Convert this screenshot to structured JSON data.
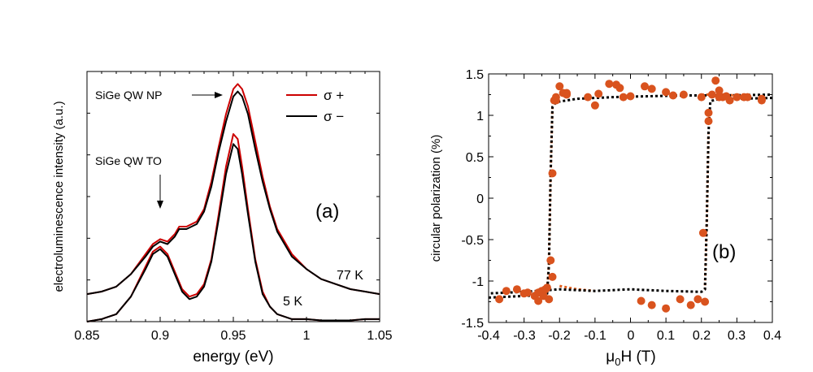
{
  "chart_data": [
    {
      "type": "line",
      "panel": "(a)",
      "xlabel": "energy (eV)",
      "ylabel": "electroluminescence intensity (a.u.)",
      "xlim": [
        0.85,
        1.05
      ],
      "ylim": [
        0,
        1
      ],
      "xticks": [
        "0.85",
        "0.9",
        "0.95",
        "1",
        "1.05"
      ],
      "legend": {
        "position": "top-right",
        "entries": [
          {
            "label": "σ +",
            "color": "#cc0000"
          },
          {
            "label": "σ −",
            "color": "#000000"
          }
        ]
      },
      "annotations": [
        {
          "text": "SiGe QW NP",
          "points_to_x": 0.95
        },
        {
          "text": "SiGe QW TO",
          "points_to_x": 0.9
        }
      ],
      "temperature_labels": {
        "high": "77 K",
        "low": "5 K"
      },
      "series": [
        {
          "name": "77 K σ +",
          "color": "#cc0000",
          "x": [
            0.85,
            0.86,
            0.87,
            0.88,
            0.89,
            0.895,
            0.9,
            0.905,
            0.91,
            0.913,
            0.918,
            0.925,
            0.93,
            0.935,
            0.94,
            0.945,
            0.95,
            0.953,
            0.956,
            0.96,
            0.965,
            0.97,
            0.975,
            0.98,
            0.99,
            1.0,
            1.01,
            1.02,
            1.03,
            1.04,
            1.05
          ],
          "y": [
            0.11,
            0.12,
            0.14,
            0.19,
            0.27,
            0.31,
            0.33,
            0.32,
            0.35,
            0.38,
            0.38,
            0.4,
            0.45,
            0.56,
            0.7,
            0.83,
            0.93,
            0.95,
            0.93,
            0.86,
            0.72,
            0.58,
            0.46,
            0.37,
            0.27,
            0.21,
            0.17,
            0.15,
            0.13,
            0.12,
            0.11
          ]
        },
        {
          "name": "77 K σ −",
          "color": "#000000",
          "x": [
            0.85,
            0.86,
            0.87,
            0.88,
            0.89,
            0.895,
            0.9,
            0.905,
            0.91,
            0.913,
            0.918,
            0.925,
            0.93,
            0.935,
            0.94,
            0.945,
            0.95,
            0.953,
            0.956,
            0.96,
            0.965,
            0.97,
            0.975,
            0.98,
            0.99,
            1.0,
            1.01,
            1.02,
            1.03,
            1.04,
            1.05
          ],
          "y": [
            0.11,
            0.12,
            0.14,
            0.19,
            0.26,
            0.3,
            0.32,
            0.31,
            0.34,
            0.37,
            0.37,
            0.39,
            0.44,
            0.54,
            0.68,
            0.8,
            0.9,
            0.92,
            0.9,
            0.83,
            0.69,
            0.56,
            0.45,
            0.36,
            0.26,
            0.21,
            0.17,
            0.15,
            0.13,
            0.12,
            0.11
          ]
        },
        {
          "name": "5 K σ +",
          "color": "#cc0000",
          "x": [
            0.85,
            0.86,
            0.87,
            0.88,
            0.89,
            0.895,
            0.9,
            0.905,
            0.91,
            0.915,
            0.92,
            0.925,
            0.93,
            0.935,
            0.94,
            0.945,
            0.95,
            0.953,
            0.956,
            0.96,
            0.965,
            0.97,
            0.975,
            0.98,
            0.99,
            1.0,
            1.01,
            1.02,
            1.03,
            1.04,
            1.05
          ],
          "y": [
            0.0,
            0.01,
            0.03,
            0.1,
            0.22,
            0.28,
            0.3,
            0.27,
            0.2,
            0.13,
            0.1,
            0.11,
            0.15,
            0.25,
            0.43,
            0.62,
            0.75,
            0.73,
            0.62,
            0.45,
            0.25,
            0.12,
            0.06,
            0.03,
            0.01,
            0.01,
            0.005,
            0.005,
            0.005,
            0.01,
            0.01
          ]
        },
        {
          "name": "5 K σ −",
          "color": "#000000",
          "x": [
            0.85,
            0.86,
            0.87,
            0.88,
            0.89,
            0.895,
            0.9,
            0.905,
            0.91,
            0.915,
            0.92,
            0.925,
            0.93,
            0.935,
            0.94,
            0.945,
            0.95,
            0.953,
            0.956,
            0.96,
            0.965,
            0.97,
            0.975,
            0.98,
            0.99,
            1.0,
            1.01,
            1.02,
            1.03,
            1.04,
            1.05
          ],
          "y": [
            0.0,
            0.01,
            0.03,
            0.1,
            0.21,
            0.27,
            0.29,
            0.26,
            0.19,
            0.12,
            0.09,
            0.1,
            0.14,
            0.24,
            0.41,
            0.59,
            0.71,
            0.69,
            0.59,
            0.43,
            0.24,
            0.11,
            0.06,
            0.03,
            0.01,
            0.01,
            0.005,
            0.005,
            0.005,
            0.01,
            0.01
          ]
        }
      ]
    },
    {
      "type": "scatter",
      "panel": "(b)",
      "xlabel_main": "μ",
      "xlabel_sub": "0",
      "xlabel_rest": "H (T)",
      "ylabel": "circular polarization (%)",
      "xlim": [
        -0.4,
        0.4
      ],
      "ylim": [
        -1.5,
        1.5
      ],
      "xticks": [
        "-0.4",
        "-0.3",
        "-0.2",
        "-0.1",
        "0",
        "0.1",
        "0.2",
        "0.3",
        "0.4"
      ],
      "yticks": [
        "1.5",
        "1",
        "0.5",
        "0",
        "-0.5",
        "-1",
        "-1.5"
      ],
      "points": {
        "color": "#d9531e",
        "x": [
          -0.37,
          -0.32,
          -0.29,
          -0.27,
          -0.26,
          -0.25,
          -0.245,
          -0.235,
          -0.23,
          -0.225,
          -0.22,
          -0.215,
          -0.21,
          -0.2,
          -0.19,
          -0.18,
          -0.12,
          -0.09,
          -0.06,
          -0.03,
          0.0,
          0.04,
          0.06,
          0.1,
          0.12,
          0.15,
          0.2,
          0.22,
          0.24,
          0.25,
          0.26,
          0.28,
          0.3,
          0.32,
          0.37,
          -0.35,
          -0.3,
          -0.26,
          -0.24,
          -0.22,
          -0.21,
          -0.18,
          -0.1,
          -0.04,
          -0.02,
          0.03,
          0.06,
          0.1,
          0.14,
          0.17,
          0.19,
          0.205,
          0.21,
          0.22,
          0.23,
          0.25,
          0.27,
          0.33,
          0.37
        ],
        "y": [
          -1.22,
          -1.1,
          -1.14,
          -1.18,
          -1.24,
          -1.12,
          -1.18,
          -1.08,
          -1.22,
          -0.75,
          0.3,
          1.18,
          1.22,
          1.35,
          1.27,
          1.25,
          1.22,
          1.26,
          1.38,
          1.33,
          1.23,
          1.35,
          1.32,
          1.28,
          1.24,
          1.25,
          1.22,
          0.93,
          1.42,
          1.3,
          1.22,
          1.18,
          1.22,
          1.22,
          1.18,
          -1.12,
          -1.15,
          -1.14,
          -1.1,
          -0.95,
          1.18,
          1.27,
          1.12,
          1.37,
          1.22,
          -1.24,
          -1.29,
          -1.33,
          -1.22,
          -1.29,
          -1.22,
          -0.42,
          -1.25,
          1.03,
          1.25,
          1.22,
          1.23,
          1.22,
          1.2
        ]
      },
      "fits": {
        "black_dotted": [
          [
            [
              -0.4,
              -1.2
            ],
            [
              -0.3,
              -1.18
            ],
            [
              -0.25,
              -1.17
            ],
            [
              -0.235,
              -1.15
            ],
            [
              -0.23,
              -0.8
            ],
            [
              -0.225,
              0.3
            ],
            [
              -0.22,
              1.1
            ],
            [
              -0.21,
              1.16
            ],
            [
              -0.15,
              1.2
            ],
            [
              -0.05,
              1.22
            ],
            [
              0.05,
              1.23
            ],
            [
              0.15,
              1.24
            ],
            [
              0.25,
              1.24
            ],
            [
              0.4,
              1.25
            ]
          ],
          [
            [
              0.4,
              1.21
            ],
            [
              0.3,
              1.2
            ],
            [
              0.24,
              1.19
            ],
            [
              0.225,
              1.17
            ],
            [
              0.22,
              0.8
            ],
            [
              0.215,
              -0.3
            ],
            [
              0.21,
              -1.1
            ],
            [
              0.2,
              -1.13
            ],
            [
              0.1,
              -1.12
            ],
            [
              0.0,
              -1.1
            ],
            [
              -0.1,
              -1.12
            ],
            [
              -0.2,
              -1.1
            ],
            [
              -0.3,
              -1.13
            ],
            [
              -0.4,
              -1.15
            ]
          ]
        ],
        "orange_dotted": [
          [
            [
              -0.235,
              -1.1
            ],
            [
              -0.23,
              -0.8
            ],
            [
              -0.225,
              0.3
            ],
            [
              -0.22,
              1.1
            ]
          ],
          [
            [
              -0.2,
              -1.06
            ],
            [
              -0.15,
              -1.1
            ],
            [
              -0.1,
              -1.12
            ]
          ],
          [
            [
              0.22,
              0.8
            ],
            [
              0.215,
              -0.3
            ],
            [
              0.21,
              -1.1
            ]
          ],
          [
            [
              0.2,
              1.25
            ],
            [
              0.25,
              1.25
            ],
            [
              0.3,
              1.24
            ]
          ]
        ]
      }
    }
  ]
}
